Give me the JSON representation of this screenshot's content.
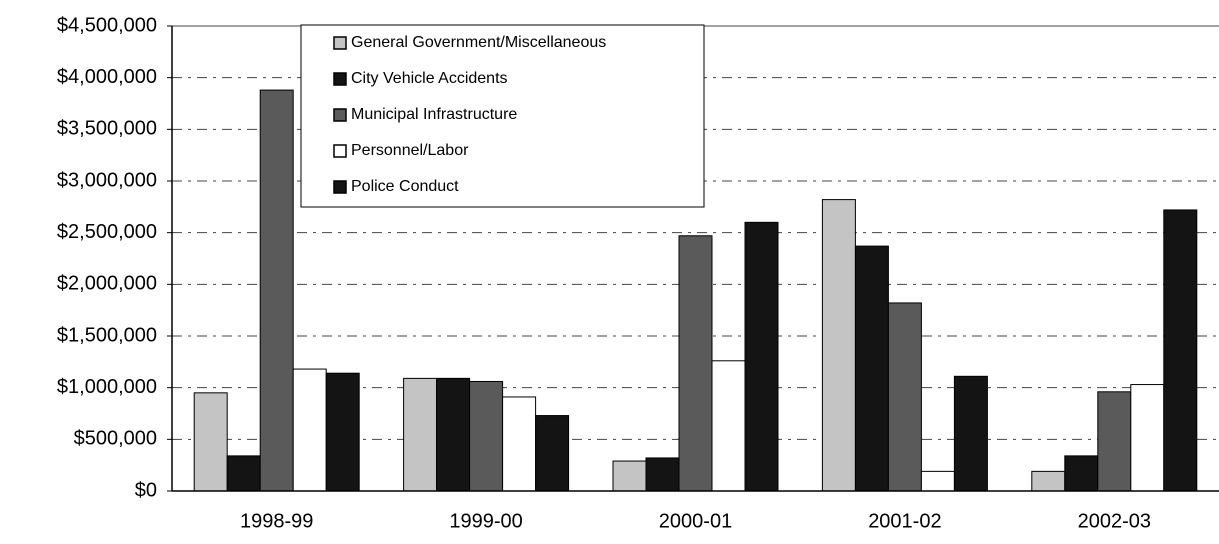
{
  "chart_data": {
    "type": "bar",
    "categories": [
      "1998-99",
      "1999-00",
      "2000-01",
      "2001-02",
      "2002-03"
    ],
    "series": [
      {
        "name": "General Government/Miscellaneous",
        "color": "#c4c4c4",
        "values": [
          950000,
          1090000,
          290000,
          2820000,
          190000
        ]
      },
      {
        "name": "City Vehicle Accidents",
        "color": "#141414",
        "values": [
          340000,
          1090000,
          320000,
          2370000,
          340000
        ]
      },
      {
        "name": "Municipal Infrastructure",
        "color": "#5a5a5a",
        "values": [
          3880000,
          1060000,
          2470000,
          1820000,
          960000
        ]
      },
      {
        "name": "Personnel/Labor",
        "color": "#ffffff",
        "values": [
          1180000,
          910000,
          1260000,
          190000,
          1030000
        ]
      },
      {
        "name": "Police Conduct",
        "color": "#141414",
        "values": [
          1140000,
          730000,
          2600000,
          1110000,
          2720000
        ]
      }
    ],
    "ylim": [
      0,
      4500000
    ],
    "yticks": [
      {
        "value": 0,
        "label": "$0"
      },
      {
        "value": 500000,
        "label": "$500,000"
      },
      {
        "value": 1000000,
        "label": "$1,000,000"
      },
      {
        "value": 1500000,
        "label": "$1,500,000"
      },
      {
        "value": 2000000,
        "label": "$2,000,000"
      },
      {
        "value": 2500000,
        "label": "$2,500,000"
      },
      {
        "value": 3000000,
        "label": "$3,000,000"
      },
      {
        "value": 3500000,
        "label": "$3,500,000"
      },
      {
        "value": 4000000,
        "label": "$4,000,000"
      },
      {
        "value": 4500000,
        "label": "$4,500,000"
      }
    ],
    "grid": true
  }
}
